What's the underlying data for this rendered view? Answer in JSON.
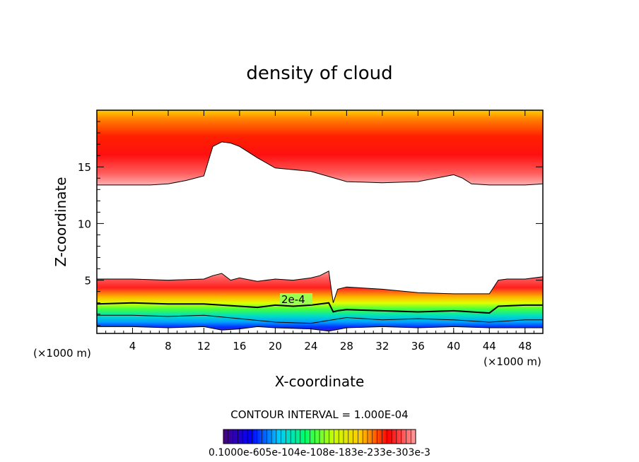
{
  "chart_data": {
    "type": "heatmap",
    "title": "density of cloud",
    "xlabel": "X-coordinate",
    "ylabel": "Z-coordinate",
    "x_unit_left": "(×1000 m)",
    "x_unit_right": "(×1000 m)",
    "xlim": [
      0,
      50
    ],
    "ylim": [
      0.3,
      20
    ],
    "x_ticks": [
      4,
      8,
      12,
      16,
      20,
      24,
      28,
      32,
      36,
      40,
      44,
      48
    ],
    "y_ticks": [
      5,
      10,
      15
    ],
    "contour_label": "2e-4",
    "contour_interval_text": "CONTOUR INTERVAL = 1.000E-04",
    "colorbar_labels_text": "0.1000e-605e-104e-108e-183e-233e-303e-3",
    "colorbar_stops": [
      "#4b0082",
      "#0000ff",
      "#00c8ff",
      "#00ff66",
      "#c8ff00",
      "#ffc800",
      "#ff0000",
      "#ffa0a0"
    ],
    "upper_layer_boundary": {
      "x": [
        0,
        2,
        4,
        6,
        8,
        10,
        12,
        13,
        14,
        15,
        16,
        18,
        20,
        24,
        28,
        32,
        36,
        38,
        40,
        41,
        42,
        44,
        46,
        48,
        50
      ],
      "z": [
        13.4,
        13.4,
        13.4,
        13.4,
        13.5,
        13.8,
        14.2,
        16.8,
        17.2,
        17.1,
        16.8,
        15.8,
        14.9,
        14.6,
        13.7,
        13.6,
        13.7,
        14.0,
        14.3,
        14.0,
        13.5,
        13.4,
        13.4,
        13.4,
        13.5
      ]
    },
    "lower_layer_top": {
      "x": [
        0,
        4,
        8,
        12,
        13,
        14,
        15,
        16,
        18,
        20,
        22,
        24,
        25,
        26,
        26.5,
        27,
        28,
        32,
        36,
        40,
        44,
        45,
        46,
        48,
        50
      ],
      "z": [
        5.1,
        5.1,
        5.0,
        5.1,
        5.4,
        5.6,
        5.0,
        5.2,
        4.9,
        5.1,
        5.0,
        5.2,
        5.4,
        5.8,
        3.0,
        4.2,
        4.4,
        4.2,
        3.9,
        3.8,
        3.8,
        5.0,
        5.1,
        5.1,
        5.3
      ]
    },
    "lower_layer_bottom": {
      "x": [
        0,
        4,
        8,
        12,
        14,
        16,
        18,
        20,
        24,
        26,
        28,
        32,
        36,
        40,
        44,
        48,
        50
      ],
      "z": [
        0.9,
        0.9,
        0.8,
        0.9,
        0.6,
        0.7,
        0.9,
        0.8,
        0.7,
        0.5,
        0.8,
        0.9,
        0.8,
        0.9,
        0.8,
        0.8,
        0.8
      ]
    },
    "contour_2e4": {
      "x": [
        0,
        4,
        8,
        12,
        14,
        16,
        18,
        20,
        22,
        24,
        26,
        26.5,
        27,
        28,
        32,
        36,
        40,
        44,
        45,
        48,
        50
      ],
      "z": [
        2.9,
        3.0,
        2.9,
        2.9,
        2.8,
        2.7,
        2.6,
        2.8,
        2.7,
        2.8,
        3.0,
        2.2,
        2.3,
        2.4,
        2.3,
        2.2,
        2.3,
        2.1,
        2.7,
        2.8,
        2.8
      ]
    },
    "contour_1e4": {
      "x": [
        0,
        4,
        8,
        12,
        16,
        20,
        24,
        28,
        32,
        36,
        40,
        44,
        48,
        50
      ],
      "z": [
        1.9,
        1.9,
        1.8,
        1.9,
        1.6,
        1.3,
        1.2,
        1.7,
        1.5,
        1.6,
        1.5,
        1.3,
        1.5,
        1.5
      ]
    }
  }
}
